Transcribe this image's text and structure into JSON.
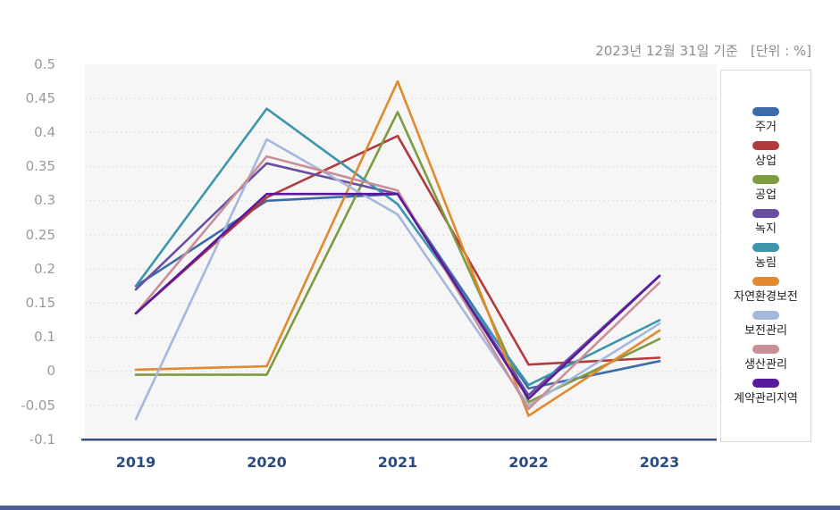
{
  "meta": {
    "baseline_label": "2023년 12월 31일 기준",
    "unit_label": "[단위 : %]"
  },
  "chart_data": {
    "type": "line",
    "title": "",
    "xlabel": "",
    "ylabel": "",
    "x_labels": [
      "2019",
      "2020",
      "2021",
      "2022",
      "2023"
    ],
    "y_tick_labels": [
      "0.5",
      "0.45",
      "0.4",
      "0.35",
      "0.3",
      "0.25",
      "0.2",
      "0.15",
      "0.1",
      "0",
      "-0.05",
      "-0.1"
    ],
    "y_tick_values": [
      0.5,
      0.45,
      0.4,
      0.35,
      0.3,
      0.25,
      0.2,
      0.15,
      0.1,
      0,
      -0.05,
      -0.1
    ],
    "grid": "horizontal-dotted",
    "legend_position": "right",
    "series": [
      {
        "name": "주거",
        "color": "#3c6ca8",
        "values": [
          0.175,
          0.3,
          0.31,
          -0.025,
          0.03
        ]
      },
      {
        "name": "상업",
        "color": "#b23a3c",
        "values": [
          0.135,
          0.305,
          0.395,
          0.02,
          0.04
        ]
      },
      {
        "name": "공업",
        "color": "#7d9b3f",
        "values": [
          -0.005,
          -0.005,
          0.43,
          -0.045,
          0.095
        ]
      },
      {
        "name": "녹지",
        "color": "#6a4fa1",
        "values": [
          0.17,
          0.355,
          0.31,
          -0.035,
          0.19
        ]
      },
      {
        "name": "농림",
        "color": "#3e96ad",
        "values": [
          0.175,
          0.435,
          0.295,
          -0.02,
          0.125
        ]
      },
      {
        "name": "자연환경보전",
        "color": "#e2882f",
        "values": [
          0.005,
          0.015,
          0.475,
          -0.065,
          0.11
        ]
      },
      {
        "name": "보전관리",
        "color": "#a6b7dc",
        "values": [
          -0.07,
          0.39,
          0.28,
          -0.05,
          0.12
        ]
      },
      {
        "name": "생산관리",
        "color": "#c98f96",
        "values": [
          0.135,
          0.365,
          0.315,
          -0.055,
          0.18
        ]
      },
      {
        "name": "계약관리지역",
        "color": "#5a189b",
        "values": [
          0.135,
          0.31,
          0.31,
          -0.04,
          0.19
        ]
      }
    ]
  },
  "styles": {
    "plot_bg": "#f6f6f7",
    "grid_color": "#dcdcdc",
    "axis_color": "#33517e",
    "x_label_color": "#2b4a7d",
    "y_label_color": "#9a9a9a",
    "meta_text_color": "#8c8c8c",
    "divider_color": "#4a5f94"
  }
}
